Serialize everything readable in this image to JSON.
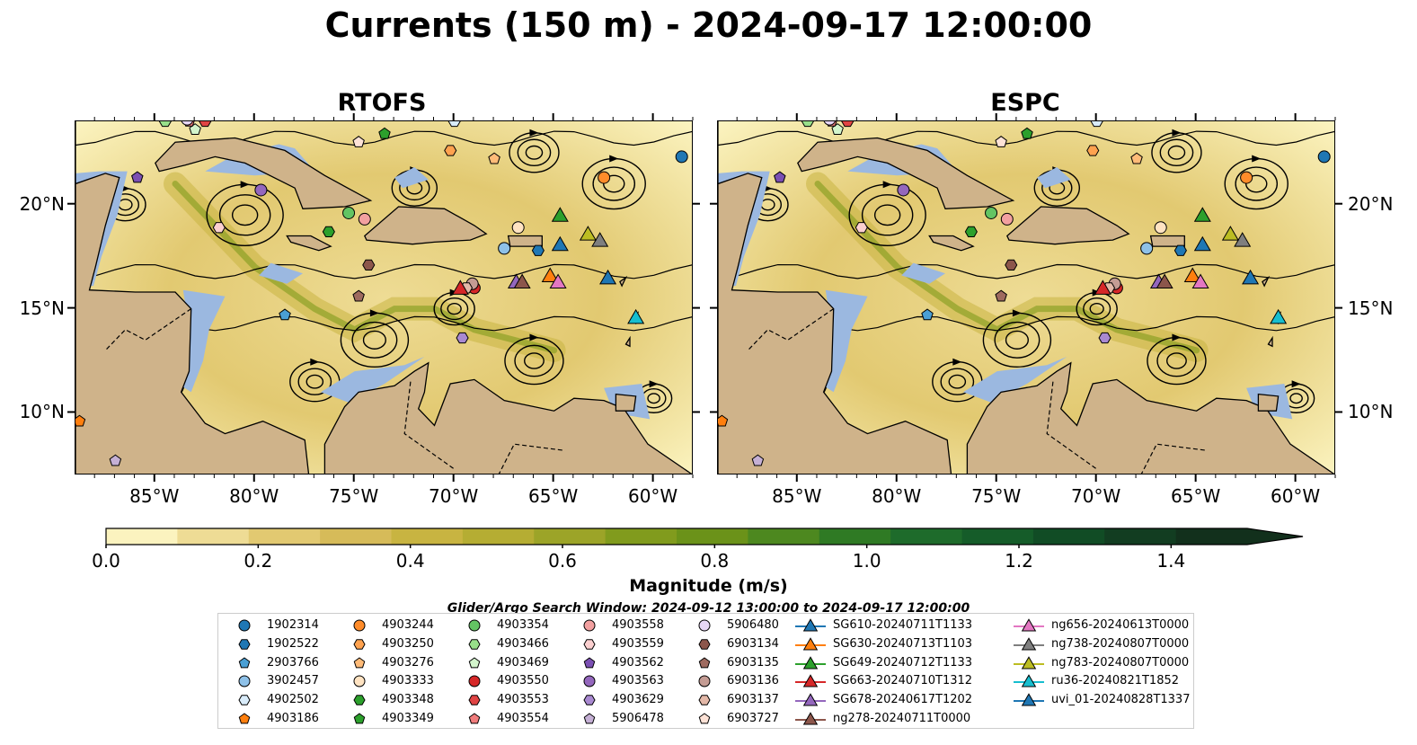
{
  "title": "Currents (150 m) - 2024-09-17 12:00:00",
  "panels": [
    {
      "title": "RTOFS"
    },
    {
      "title": "ESPC"
    }
  ],
  "axes": {
    "lon_labels": [
      "85°W",
      "80°W",
      "75°W",
      "70°W",
      "65°W",
      "60°W"
    ],
    "lat_labels": [
      "20°N",
      "15°N",
      "10°N"
    ],
    "lon_range": [
      -89,
      -58
    ],
    "lat_range": [
      7,
      24
    ]
  },
  "colorbar": {
    "label": "Magnitude (m/s)",
    "ticks": [
      "0.0",
      "0.2",
      "0.4",
      "0.6",
      "0.8",
      "1.0",
      "1.2",
      "1.4"
    ],
    "range": [
      0,
      1.5
    ],
    "extend": "max",
    "colors": [
      "#fbf3bf",
      "#eedc95",
      "#e2c971",
      "#d6bb59",
      "#c8b441",
      "#b5ad33",
      "#9ca428",
      "#819b1d",
      "#6b9219",
      "#4d881f",
      "#2f7a24",
      "#1e6b2b",
      "#155c29",
      "#114c25",
      "#123d21",
      "#12301c"
    ]
  },
  "search_window": "Glider/Argo Search Window: 2024-09-12 13:00:00 to 2024-09-17 12:00:00",
  "colors": {
    "land": "#cfb38a",
    "shallow": "#9bb8e0",
    "river": "#9bb8e0"
  },
  "legend": [
    {
      "label": "1902314",
      "shape": "circle",
      "color": "#1f77b4"
    },
    {
      "label": "1902522",
      "shape": "hexagon",
      "color": "#1f77b4"
    },
    {
      "label": "2903766",
      "shape": "pentagon",
      "color": "#4a9fd4"
    },
    {
      "label": "3902457",
      "shape": "circle",
      "color": "#8ec1e8"
    },
    {
      "label": "4902502",
      "shape": "hexagon",
      "color": "#d9ecfa"
    },
    {
      "label": "4903186",
      "shape": "pentagon",
      "color": "#ff7f0e"
    },
    {
      "label": "4903244",
      "shape": "circle",
      "color": "#ff8c2a"
    },
    {
      "label": "4903250",
      "shape": "hexagon",
      "color": "#ffa24f"
    },
    {
      "label": "4903276",
      "shape": "pentagon",
      "color": "#ffbb78"
    },
    {
      "label": "4903333",
      "shape": "circle",
      "color": "#ffe3c2"
    },
    {
      "label": "4903348",
      "shape": "hexagon",
      "color": "#2ca02c"
    },
    {
      "label": "4903349",
      "shape": "pentagon",
      "color": "#2ca02c"
    },
    {
      "label": "4903354",
      "shape": "circle",
      "color": "#63c463"
    },
    {
      "label": "4903466",
      "shape": "hexagon",
      "color": "#98df8a"
    },
    {
      "label": "4903469",
      "shape": "pentagon",
      "color": "#d3f5cc"
    },
    {
      "label": "4903550",
      "shape": "circle",
      "color": "#d62728"
    },
    {
      "label": "4903553",
      "shape": "hexagon",
      "color": "#e04444"
    },
    {
      "label": "4903554",
      "shape": "pentagon",
      "color": "#f07c7c"
    },
    {
      "label": "4903558",
      "shape": "circle",
      "color": "#f2a0a0"
    },
    {
      "label": "4903559",
      "shape": "hexagon",
      "color": "#fbd0d0"
    },
    {
      "label": "4903562",
      "shape": "pentagon",
      "color": "#7b4fb3"
    },
    {
      "label": "4903563",
      "shape": "circle",
      "color": "#9467bd"
    },
    {
      "label": "4903629",
      "shape": "hexagon",
      "color": "#a989d1"
    },
    {
      "label": "5906478",
      "shape": "pentagon",
      "color": "#c5b0d5"
    },
    {
      "label": "5906480",
      "shape": "circle",
      "color": "#e6d6f5"
    },
    {
      "label": "6903134",
      "shape": "hexagon",
      "color": "#8c564b"
    },
    {
      "label": "6903135",
      "shape": "pentagon",
      "color": "#9e6a5f"
    },
    {
      "label": "6903136",
      "shape": "circle",
      "color": "#c49c94"
    },
    {
      "label": "6903137",
      "shape": "hexagon",
      "color": "#e3b8a8"
    },
    {
      "label": "6903727",
      "shape": "pentagon",
      "color": "#fde2d6"
    },
    {
      "label": "SG610-20240711T1133",
      "shape": "triangle",
      "color": "#1f77b4"
    },
    {
      "label": "SG630-20240713T1103",
      "shape": "triangle",
      "color": "#ff7f0e"
    },
    {
      "label": "SG649-20240712T1133",
      "shape": "triangle",
      "color": "#2ca02c"
    },
    {
      "label": "SG663-20240710T1312",
      "shape": "triangle",
      "color": "#d62728"
    },
    {
      "label": "SG678-20240617T1202",
      "shape": "triangle",
      "color": "#9467bd"
    },
    {
      "label": "ng278-20240711T0000",
      "shape": "triangle",
      "color": "#8c564b"
    },
    {
      "label": "ng656-20240613T0000",
      "shape": "triangle",
      "color": "#e377c2"
    },
    {
      "label": "ng738-20240807T0000",
      "shape": "triangle",
      "color": "#7f7f7f"
    },
    {
      "label": "ng783-20240807T0000",
      "shape": "triangle",
      "color": "#bcbd22"
    },
    {
      "label": "ru36-20240821T1852",
      "shape": "triangle",
      "color": "#17becf"
    },
    {
      "label": "uvi_01-20240828T1337",
      "shape": "triangle",
      "color": "#1f77b4"
    }
  ]
}
